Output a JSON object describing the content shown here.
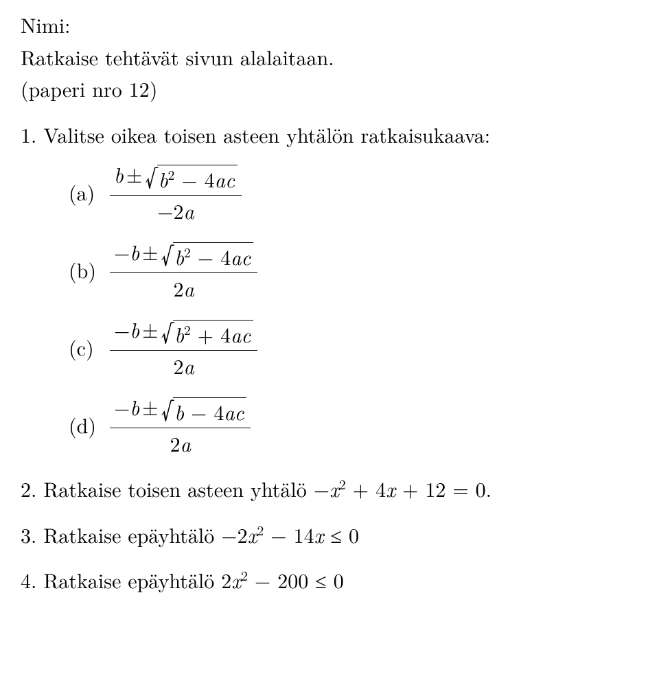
{
  "font_family": "Latin Modern Roman / Computer Modern serif",
  "colors": {
    "text": "#000000",
    "background": "#ffffff",
    "rule": "#000000"
  },
  "base_fontsize_pt": 22,
  "header": {
    "name_label": "Nimi:",
    "instruction": "Ratkaise tehtävät sivun alalaitaan.",
    "paper_note": "(paperi nro 12)"
  },
  "q1": {
    "number": "1.",
    "text": "Valitse oikea toisen asteen yhtälön ratkaisukaava:",
    "options": [
      {
        "label": "(a)",
        "num_lead": "b",
        "pm": "±",
        "rad": "b² − 4ac",
        "den": "−2a"
      },
      {
        "label": "(b)",
        "num_lead": "−b",
        "pm": "±",
        "rad": "b² − 4ac",
        "den": "2a"
      },
      {
        "label": "(c)",
        "num_lead": "−b",
        "pm": "±",
        "rad": "b² + 4ac",
        "den": "2a"
      },
      {
        "label": "(d)",
        "num_lead": "−b",
        "pm": "±",
        "rad": "b − 4ac",
        "den": "2a"
      }
    ]
  },
  "q2": {
    "number": "2.",
    "text_pre": "Ratkaise toisen asteen yhtälö ",
    "expr": "−x² + 4x + 12 = 0",
    "text_post": "."
  },
  "q3": {
    "number": "3.",
    "text_pre": "Ratkaise epäyhtälö ",
    "expr": "−2x² − 14x ≤ 0"
  },
  "q4": {
    "number": "4.",
    "text_pre": "Ratkaise epäyhtälö ",
    "expr": "2x² − 200 ≤ 0"
  }
}
